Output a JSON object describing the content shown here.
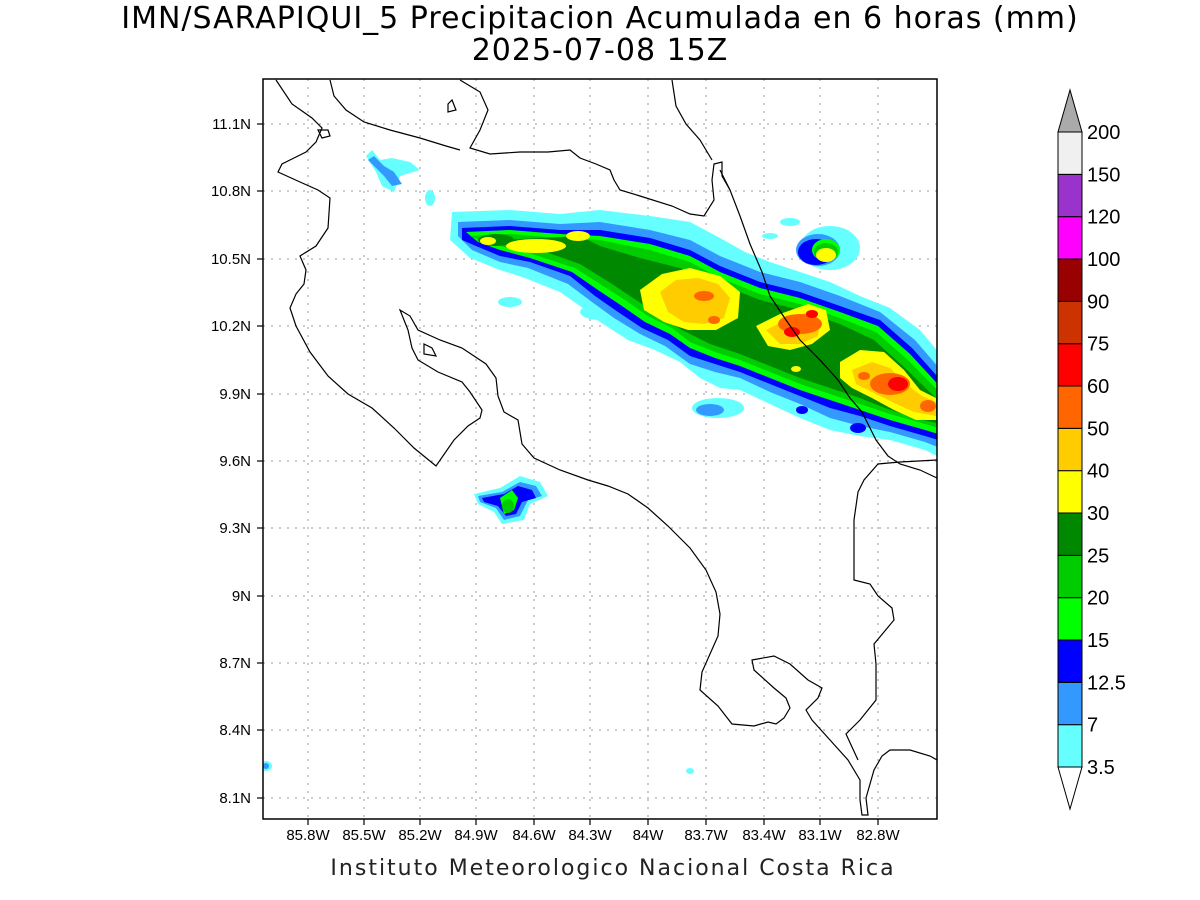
{
  "title": {
    "line1": "IMN/SARAPIQUI_5 Precipitacion Acumulada en 6 horas (mm)",
    "line2": "2025-07-08 15Z"
  },
  "footer": "Instituto Meteorologico Nacional Costa Rica",
  "map": {
    "region": "Costa Rica",
    "lon_range": [
      -86.1,
      -82.4
    ],
    "lat_range": [
      8.0,
      11.3
    ],
    "grid": true,
    "x_ticks": [
      "85.8W",
      "85.5W",
      "85.2W",
      "84.9W",
      "84.6W",
      "84.3W",
      "84W",
      "83.7W",
      "83.4W",
      "83.1W",
      "82.8W"
    ],
    "y_ticks": [
      "11.1N",
      "10.8N",
      "10.5N",
      "10.2N",
      "9.9N",
      "9.6N",
      "9.3N",
      "9N",
      "8.7N",
      "8.4N",
      "8.1N"
    ]
  },
  "colorbar": {
    "unit": "mm",
    "levels": [
      "3.5",
      "7",
      "12.5",
      "15",
      "20",
      "25",
      "30",
      "40",
      "50",
      "60",
      "75",
      "90",
      "100",
      "120",
      "150",
      "200"
    ],
    "colors": [
      "#66ffff",
      "#3399ff",
      "#0000ff",
      "#00ff00",
      "#00cc00",
      "#008800",
      "#ffff00",
      "#ffcc00",
      "#ff6600",
      "#ff0000",
      "#cc3300",
      "#990000",
      "#ff00ff",
      "#9933cc",
      "#f0f0f0",
      "#aaaaaa"
    ],
    "bottom_arrow_color": "#ffffff",
    "top_arrow_color": "#aaaaaa"
  }
}
